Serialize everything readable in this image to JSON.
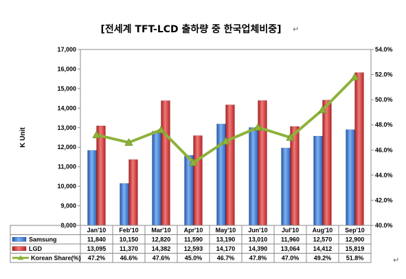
{
  "chart_data": {
    "type": "bar",
    "title": "[전세계 TFT-LCD 출하량 중 한국업체비중]",
    "title_mark": "↵",
    "ylabel": "K Unit",
    "categories": [
      "Jan'10",
      "Feb'10",
      "Mar'10",
      "Apr'10",
      "May'10",
      "Jun'10",
      "Jul'10",
      "Aug'10",
      "Sep'10"
    ],
    "ylim": [
      8000,
      17000
    ],
    "ytick_step": 1000,
    "ytick_labels": [
      "8,000",
      "9,000",
      "10,000",
      "11,000",
      "12,000",
      "13,000",
      "14,000",
      "15,000",
      "16,000",
      "17,000"
    ],
    "y2lim": [
      40.0,
      54.0
    ],
    "y2tick_step": 2.0,
    "y2tick_labels": [
      "40.0%",
      "42.0%",
      "44.0%",
      "46.0%",
      "48.0%",
      "50.0%",
      "52.0%",
      "54.0%"
    ],
    "grid": false,
    "legend": "table-below",
    "series": [
      {
        "name": "Samsung",
        "kind": "bar",
        "color": "#3f7fd6",
        "values": [
          11840,
          10150,
          12820,
          11590,
          13190,
          13010,
          11960,
          12570,
          12900
        ],
        "labels": [
          "11,840",
          "10,150",
          "12,820",
          "11,590",
          "13,190",
          "13,010",
          "11,960",
          "12,570",
          "12,900"
        ]
      },
      {
        "name": "LGD",
        "kind": "bar",
        "color": "#d93535",
        "values": [
          13095,
          11370,
          14382,
          12593,
          14170,
          14390,
          13064,
          14412,
          15819
        ],
        "labels": [
          "13,095",
          "11,370",
          "14,382",
          "12,593",
          "14,170",
          "14,390",
          "13,064",
          "14,412",
          "15,819"
        ]
      },
      {
        "name": "Korean Share(%)",
        "kind": "line",
        "axis": "right",
        "color": "#8db23a",
        "values": [
          47.2,
          46.6,
          47.6,
          45.0,
          46.7,
          47.8,
          47.0,
          49.2,
          51.8
        ],
        "labels": [
          "47.2%",
          "46.6%",
          "47.6%",
          "45.0%",
          "46.7%",
          "47.8%",
          "47.0%",
          "49.2%",
          "51.8%"
        ]
      }
    ],
    "end_mark": "↵"
  }
}
